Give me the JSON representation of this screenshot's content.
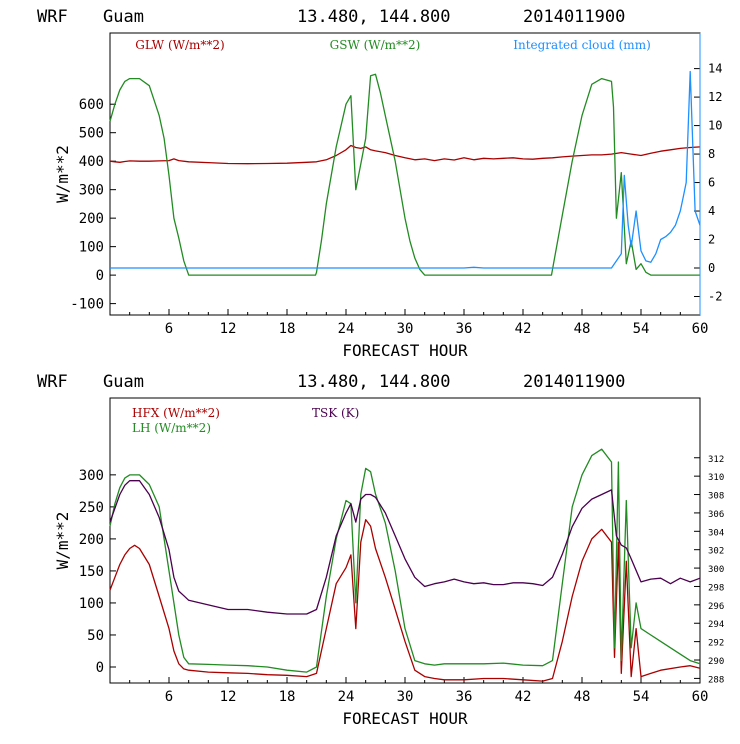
{
  "chart_data": [
    {
      "type": "line",
      "header": {
        "model": "WRF",
        "location": "Guam",
        "coords": "13.480, 144.800",
        "init": "2014011900"
      },
      "xlabel": "FORECAST HOUR",
      "ylabel": "W/m**2",
      "xlim": [
        0,
        60
      ],
      "ylim": [
        -140,
        850
      ],
      "xticks": [
        6,
        12,
        18,
        24,
        30,
        36,
        42,
        48,
        54,
        60
      ],
      "yticks": [
        -100,
        0,
        100,
        200,
        300,
        400,
        500,
        600
      ],
      "y2lim": [
        -3.3,
        16.5
      ],
      "y2ticks": [
        -2,
        0,
        2,
        4,
        6,
        8,
        10,
        12,
        14
      ],
      "grid": false,
      "legend_position": "top",
      "series": [
        {
          "name": "GLW (W/m**2)",
          "axis": "left",
          "color": "#aa0000",
          "x": [
            0,
            0.5,
            1,
            1.5,
            2,
            3,
            4,
            5,
            6,
            6.5,
            7,
            8,
            10,
            12,
            14,
            16,
            18,
            20,
            21,
            22,
            23,
            24,
            24.5,
            25,
            25.5,
            26,
            26.5,
            27,
            28,
            29,
            30,
            31,
            32,
            33,
            34,
            35,
            36,
            37,
            38,
            39,
            40,
            41,
            42,
            43,
            44,
            45,
            46,
            47,
            48,
            49,
            50,
            51,
            52,
            53,
            54,
            55,
            56,
            57,
            58,
            59,
            60
          ],
          "y": [
            400,
            398,
            396,
            399,
            401,
            400,
            400,
            401,
            402,
            408,
            402,
            398,
            395,
            392,
            391,
            392,
            393,
            396,
            398,
            405,
            420,
            440,
            455,
            448,
            445,
            450,
            440,
            436,
            430,
            420,
            412,
            405,
            408,
            402,
            408,
            404,
            412,
            405,
            410,
            408,
            410,
            412,
            408,
            407,
            410,
            412,
            415,
            418,
            420,
            422,
            422,
            425,
            430,
            425,
            420,
            428,
            435,
            440,
            445,
            448,
            450
          ]
        },
        {
          "name": "GSW (W/m**2)",
          "axis": "left",
          "color": "#228b22",
          "x": [
            0,
            0.5,
            1,
            1.5,
            2,
            3,
            4,
            5,
            5.5,
            6,
            6.5,
            7,
            7.5,
            8,
            20.9,
            21,
            21.5,
            22,
            23,
            24,
            24.5,
            25,
            25.5,
            26,
            26.5,
            27,
            27.5,
            28,
            29,
            30,
            30.5,
            31,
            31.5,
            32,
            44.9,
            45,
            46,
            47,
            48,
            49,
            50,
            51,
            51.2,
            51.5,
            52,
            52.5,
            53,
            53.5,
            54,
            54.5,
            55,
            56,
            57,
            58,
            59,
            60
          ],
          "y": [
            540,
            600,
            650,
            680,
            690,
            690,
            665,
            560,
            480,
            350,
            200,
            130,
            50,
            0,
            0,
            10,
            120,
            250,
            450,
            600,
            630,
            300,
            390,
            480,
            700,
            705,
            640,
            560,
            400,
            200,
            120,
            60,
            20,
            0,
            0,
            20,
            210,
            400,
            560,
            670,
            690,
            680,
            590,
            200,
            360,
            40,
            120,
            20,
            40,
            10,
            0,
            0,
            0,
            0,
            0,
            0
          ]
        },
        {
          "name": "Integrated cloud (mm)",
          "axis": "right",
          "color": "#1e90ff",
          "x": [
            0,
            10,
            20,
            30,
            36,
            37,
            38,
            40,
            50,
            51,
            51.5,
            52,
            52.3,
            52.7,
            53,
            53.5,
            54,
            54.5,
            55,
            55.5,
            56,
            56.5,
            57,
            57.5,
            58,
            58.3,
            58.6,
            59,
            59.5,
            60
          ],
          "y": [
            0,
            0,
            0,
            0,
            0,
            0.05,
            0,
            0,
            0,
            0,
            0.5,
            1,
            6.5,
            3,
            1.5,
            4,
            1.2,
            0.5,
            0.4,
            1,
            2,
            2.2,
            2.5,
            3,
            4,
            5,
            6,
            13.8,
            4,
            3
          ]
        }
      ]
    },
    {
      "type": "line",
      "header": {
        "model": "WRF",
        "location": "Guam",
        "coords": "13.480, 144.800",
        "init": "2014011900"
      },
      "xlabel": "FORECAST HOUR",
      "ylabel": "W/m**2",
      "xlim": [
        0,
        60
      ],
      "ylim": [
        -25,
        420
      ],
      "xticks": [
        6,
        12,
        18,
        24,
        30,
        36,
        42,
        48,
        54,
        60
      ],
      "yticks": [
        0,
        50,
        100,
        150,
        200,
        250,
        300
      ],
      "y2lim": [
        287.5,
        318.5
      ],
      "y2ticks": [
        288,
        290,
        292,
        294,
        296,
        298,
        300,
        302,
        304,
        306,
        308,
        310,
        312
      ],
      "grid": false,
      "legend_position": "top",
      "series": [
        {
          "name": "HFX (W/m**2)",
          "axis": "left",
          "color": "#aa0000",
          "x": [
            0,
            0.5,
            1,
            1.5,
            2,
            2.5,
            3,
            4,
            5,
            6,
            6.5,
            7,
            7.5,
            8,
            10,
            12,
            14,
            16,
            18,
            20,
            21,
            22,
            23,
            24,
            24.5,
            25,
            25.5,
            26,
            26.5,
            27,
            28,
            29,
            30,
            31,
            32,
            33,
            34,
            36,
            38,
            40,
            42,
            44,
            45,
            46,
            47,
            48,
            49,
            50,
            51,
            51.3,
            51.7,
            52,
            52.5,
            53,
            53.5,
            54,
            55,
            56,
            58,
            59,
            60
          ],
          "y": [
            120,
            140,
            160,
            175,
            185,
            190,
            185,
            160,
            110,
            60,
            25,
            5,
            -3,
            -5,
            -8,
            -9,
            -10,
            -12,
            -13,
            -15,
            -10,
            60,
            130,
            155,
            175,
            60,
            195,
            230,
            220,
            185,
            140,
            90,
            40,
            -5,
            -15,
            -18,
            -20,
            -20,
            -18,
            -18,
            -20,
            -22,
            -18,
            40,
            110,
            165,
            200,
            215,
            195,
            15,
            195,
            -10,
            165,
            -15,
            60,
            -15,
            -10,
            -5,
            0,
            2,
            -2
          ]
        },
        {
          "name": "LH  (W/m**2)",
          "axis": "left",
          "color": "#228b22",
          "x": [
            0,
            0.5,
            1,
            1.5,
            2,
            3,
            4,
            5,
            5.5,
            6,
            6.5,
            7,
            7.5,
            8,
            10,
            12,
            14,
            16,
            18,
            20,
            21,
            22,
            23,
            24,
            24.5,
            25,
            25.5,
            26,
            26.5,
            27,
            28,
            29,
            30,
            31,
            32,
            33,
            34,
            36,
            38,
            40,
            42,
            44,
            45,
            46,
            47,
            48,
            49,
            50,
            51,
            51.3,
            51.7,
            52,
            52.5,
            53,
            53.5,
            54,
            55,
            56,
            57,
            58,
            59,
            60
          ],
          "y": [
            220,
            255,
            280,
            295,
            300,
            300,
            285,
            250,
            200,
            150,
            100,
            50,
            15,
            5,
            4,
            3,
            2,
            0,
            -5,
            -8,
            0,
            110,
            200,
            260,
            255,
            100,
            270,
            310,
            305,
            270,
            225,
            150,
            60,
            10,
            5,
            3,
            5,
            5,
            5,
            6,
            3,
            2,
            10,
            130,
            250,
            300,
            330,
            340,
            320,
            30,
            320,
            10,
            260,
            30,
            100,
            60,
            50,
            40,
            30,
            20,
            10,
            5
          ]
        },
        {
          "name": "TSK (K)",
          "axis": "right",
          "color": "#4b0050",
          "x": [
            0,
            0.5,
            1,
            1.5,
            2,
            3,
            4,
            5,
            6,
            6.5,
            7,
            7.5,
            8,
            10,
            12,
            14,
            16,
            18,
            20,
            21,
            22,
            23,
            24,
            24.5,
            25,
            25.5,
            26,
            26.5,
            27,
            28,
            29,
            30,
            31,
            32,
            33,
            34,
            35,
            36,
            37,
            38,
            39,
            40,
            41,
            42,
            43,
            44,
            45,
            46,
            47,
            48,
            49,
            50,
            51,
            51.5,
            52,
            52.5,
            53,
            54,
            55,
            56,
            57,
            58,
            59,
            60
          ],
          "y": [
            305,
            306.5,
            308,
            309,
            309.5,
            309.5,
            308,
            305.5,
            302,
            299,
            297.5,
            297,
            296.5,
            296,
            295.5,
            295.5,
            295.2,
            295,
            295,
            295.5,
            299,
            303.5,
            306,
            307,
            305,
            307.5,
            308,
            308,
            307.7,
            306,
            303.5,
            301,
            299,
            298,
            298.3,
            298.5,
            298.8,
            298.5,
            298.3,
            298.4,
            298.2,
            298.2,
            298.4,
            298.4,
            298.3,
            298.1,
            299,
            301.5,
            304.5,
            306.5,
            307.5,
            308,
            308.5,
            303.5,
            302.5,
            302.2,
            301,
            298.5,
            298.8,
            298.9,
            298.3,
            298.9,
            298.5,
            298.9
          ]
        }
      ]
    }
  ]
}
